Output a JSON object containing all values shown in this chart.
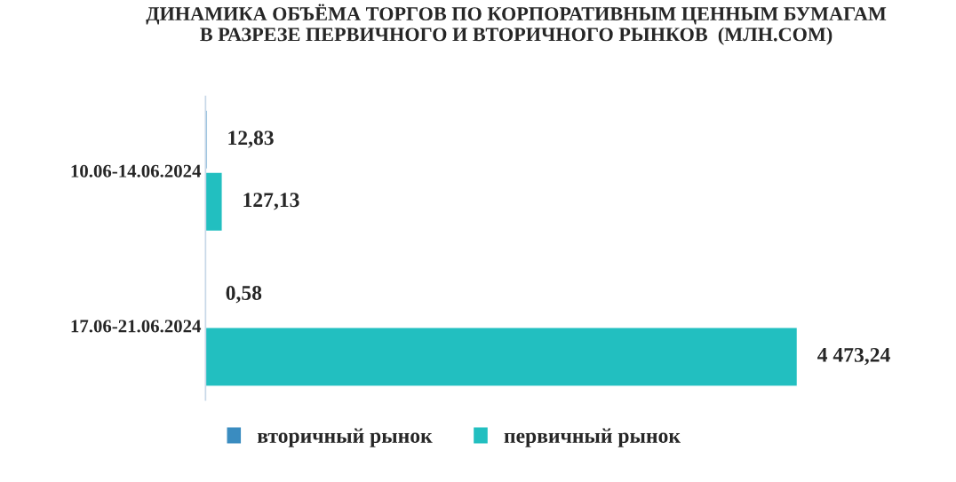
{
  "chart_data": {
    "type": "bar",
    "orientation": "horizontal",
    "title": "ДИНАМИКА ОБЪЁМА ТОРГОВ ПО КОРПОРАТИВНЫМ ЦЕННЫМ БУМАГАМ\nВ РАЗРЕЗЕ ПЕРВИЧНОГО И ВТОРИЧНОГО РЫНКОВ  (МЛН.СОМ)",
    "categories": [
      "10.06-14.06.2024",
      "17.06-21.06.2024"
    ],
    "series": [
      {
        "name": "вторичный рынок",
        "color": "#3a8cc0",
        "values": [
          12.83,
          0.58
        ],
        "value_labels": [
          "12,83",
          "0,58"
        ]
      },
      {
        "name": "первичный рынок",
        "color": "#22bfc0",
        "values": [
          127.13,
          4473.24
        ],
        "value_labels": [
          "127,13",
          "4 473,24"
        ]
      }
    ],
    "tick_labels": "y",
    "grid": false,
    "legend": "bottom"
  }
}
